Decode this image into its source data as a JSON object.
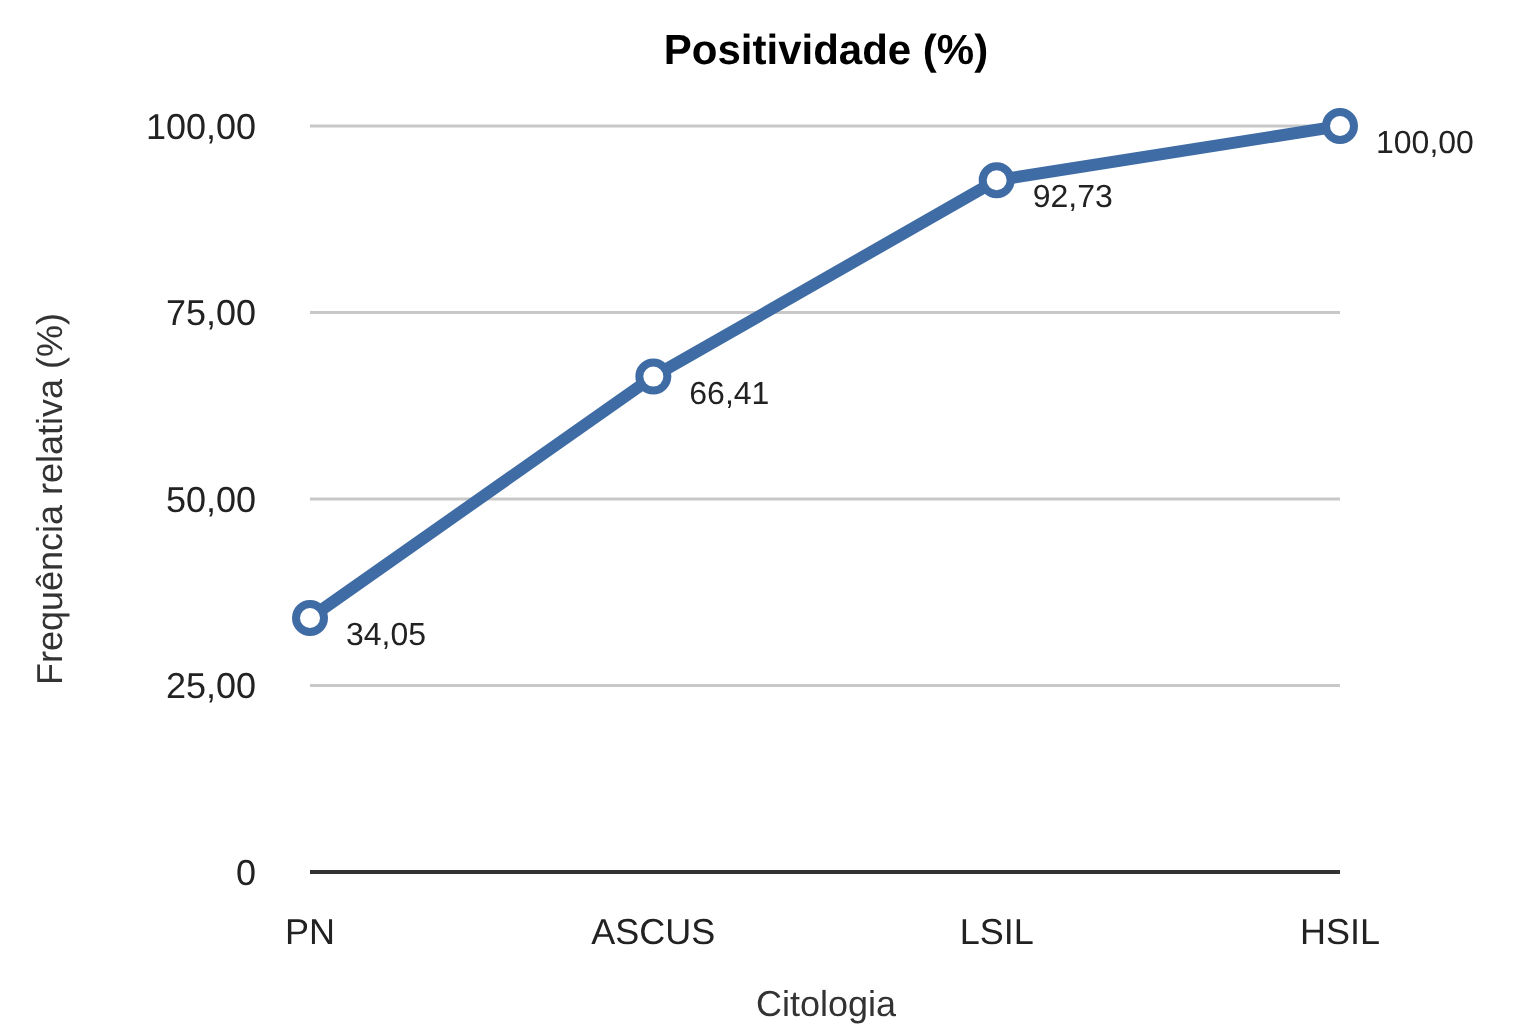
{
  "chart_data": {
    "type": "line",
    "title": "Positividade (%)",
    "xlabel": "Citologia",
    "ylabel": "Frequência relativa (%)",
    "categories": [
      "PN",
      "ASCUS",
      "LSIL",
      "HSIL"
    ],
    "series": [
      {
        "color": "#3f6ca4",
        "values": [
          34.05,
          66.41,
          92.73,
          100
        ],
        "value_labels": [
          "34,05",
          "66,41",
          "92,73",
          "100,00"
        ]
      }
    ],
    "ylim": [
      0,
      100
    ],
    "yticks": [
      0,
      {
        "value": 25,
        "label": "25,00"
      },
      {
        "value": 50,
        "label": "50,00"
      },
      {
        "value": 75,
        "label": "75,00"
      },
      {
        "value": 100,
        "label": "100,00"
      }
    ],
    "grid": "y",
    "marker": "circle"
  }
}
